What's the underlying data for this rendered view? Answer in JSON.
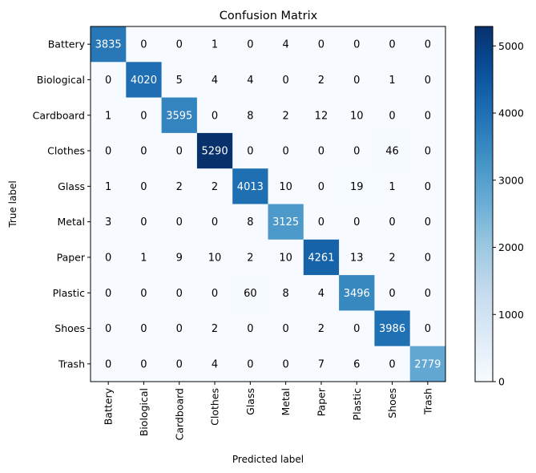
{
  "chart_data": {
    "type": "heatmap",
    "title": "Confusion Matrix",
    "xlabel": "Predicted label",
    "ylabel": "True label",
    "x_categories": [
      "Battery",
      "Biological",
      "Cardboard",
      "Clothes",
      "Glass",
      "Metal",
      "Paper",
      "Plastic",
      "Shoes",
      "Trash"
    ],
    "y_categories": [
      "Battery",
      "Biological",
      "Cardboard",
      "Clothes",
      "Glass",
      "Metal",
      "Paper",
      "Plastic",
      "Shoes",
      "Trash"
    ],
    "values": [
      [
        3835,
        0,
        0,
        1,
        0,
        4,
        0,
        0,
        0,
        0
      ],
      [
        0,
        4020,
        5,
        4,
        4,
        0,
        2,
        0,
        1,
        0
      ],
      [
        1,
        0,
        3595,
        0,
        8,
        2,
        12,
        10,
        0,
        0
      ],
      [
        0,
        0,
        0,
        5290,
        0,
        0,
        0,
        0,
        46,
        0
      ],
      [
        1,
        0,
        2,
        2,
        4013,
        10,
        0,
        19,
        1,
        0
      ],
      [
        3,
        0,
        0,
        0,
        8,
        3125,
        0,
        0,
        0,
        0
      ],
      [
        0,
        1,
        9,
        10,
        2,
        10,
        4261,
        13,
        2,
        0
      ],
      [
        0,
        0,
        0,
        0,
        60,
        8,
        4,
        3496,
        0,
        0
      ],
      [
        0,
        0,
        0,
        2,
        0,
        0,
        2,
        0,
        3986,
        0
      ],
      [
        0,
        0,
        0,
        4,
        0,
        0,
        7,
        6,
        0,
        2779
      ]
    ],
    "colormap": "Blues",
    "colorbar": {
      "range": [
        0,
        5290
      ],
      "ticks": [
        0,
        1000,
        2000,
        3000,
        4000,
        5000
      ]
    },
    "grid": false
  }
}
